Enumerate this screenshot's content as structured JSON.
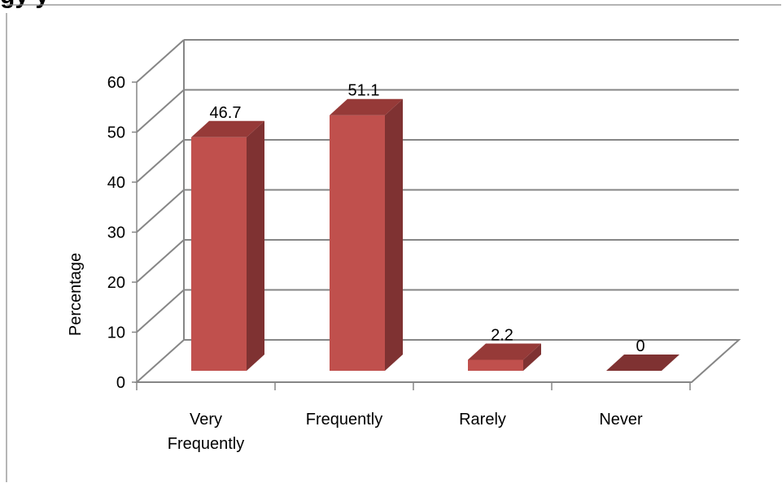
{
  "chart_data": {
    "type": "bar",
    "style": "3d-column",
    "title_fragment": "gy         y",
    "categories": [
      "Very Frequently",
      "Frequently",
      "Rarely",
      "Never"
    ],
    "category_lines": [
      [
        "Very",
        "Frequently"
      ],
      [
        "Frequently"
      ],
      [
        "Rarely"
      ],
      [
        "Never"
      ]
    ],
    "values": [
      46.7,
      51.1,
      2.2,
      0
    ],
    "value_labels": [
      "46.7",
      "51.1",
      "2.2",
      "0"
    ],
    "ylabel": "Percentage",
    "yticks": [
      0,
      10,
      20,
      30,
      40,
      50,
      60
    ],
    "ylim": [
      0,
      60
    ],
    "grid": true,
    "legend": "none",
    "colors": {
      "bar_front": "#c0504d",
      "bar_side": "#7f3232",
      "bar_top": "#963a38",
      "grid": "#868686",
      "axis": "#868686",
      "text": "#000000",
      "border": "#868686"
    }
  }
}
